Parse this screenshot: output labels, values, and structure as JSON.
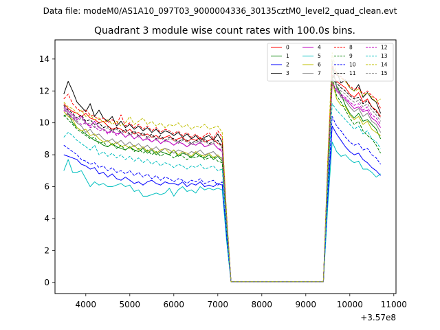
{
  "suptitle": "Data file: modeM0/AS1A10_097T03_9000004336_30135cztM0_level2_quad_clean.evt",
  "chart_data": {
    "type": "line",
    "title": "Quadrant 3 module wise count rates with 100.0s bins.",
    "xlabel": "",
    "ylabel": "",
    "offset_text": "+3.57e8",
    "xlim": [
      3300,
      11050
    ],
    "ylim": [
      -0.7,
      15.2
    ],
    "xticks": [
      4000,
      5000,
      6000,
      7000,
      8000,
      9000,
      10000,
      11000
    ],
    "xtick_labels": [
      "4000",
      "5000",
      "6000",
      "7000",
      "8000",
      "9000",
      "10000",
      "11000"
    ],
    "yticks": [
      0,
      2,
      4,
      6,
      8,
      10,
      12,
      14
    ],
    "ytick_labels": [
      "0",
      "2",
      "4",
      "6",
      "8",
      "10",
      "12",
      "14"
    ],
    "bin_seconds": 100,
    "x": [
      3500,
      3600,
      3700,
      3800,
      3900,
      4000,
      4100,
      4200,
      4300,
      4400,
      4500,
      4600,
      4700,
      4800,
      4900,
      5000,
      5100,
      5200,
      5300,
      5400,
      5500,
      5600,
      5700,
      5800,
      5900,
      6000,
      6100,
      6200,
      6300,
      6400,
      6500,
      6600,
      6700,
      6800,
      6900,
      7000,
      7100,
      7200,
      7300,
      9400,
      9500,
      9600,
      9700,
      9800,
      9900,
      10000,
      10100,
      10200,
      10300,
      10400,
      10500,
      10600,
      10700
    ],
    "legend": {
      "location": "upper right",
      "columns": 4
    },
    "series": [
      {
        "name": "0",
        "color": "#ff0000",
        "dash": "solid",
        "values": [
          11.2,
          10.9,
          10.7,
          10.6,
          10.4,
          10.6,
          10.3,
          10.2,
          10.0,
          10.1,
          9.8,
          9.6,
          9.7,
          9.6,
          9.4,
          9.6,
          9.3,
          9.4,
          9.2,
          9.3,
          9.1,
          9.2,
          9.0,
          9.1,
          9.2,
          8.9,
          9.0,
          9.1,
          8.8,
          9.0,
          8.9,
          9.1,
          8.8,
          8.9,
          9.0,
          8.7,
          8.6,
          4.0,
          0.05,
          0.05,
          7.0,
          13.0,
          12.6,
          12.4,
          12.2,
          11.8,
          11.6,
          11.9,
          11.3,
          11.5,
          11.0,
          10.8,
          10.4
        ]
      },
      {
        "name": "1",
        "color": "#008000",
        "dash": "solid",
        "values": [
          10.4,
          10.6,
          10.0,
          9.7,
          9.5,
          9.3,
          9.1,
          8.9,
          8.8,
          8.6,
          8.5,
          8.7,
          8.5,
          8.4,
          8.3,
          8.5,
          8.3,
          8.2,
          8.4,
          8.1,
          8.3,
          8.0,
          8.2,
          8.1,
          8.0,
          8.3,
          7.9,
          8.1,
          8.0,
          7.8,
          8.1,
          7.9,
          7.8,
          8.0,
          7.7,
          7.9,
          7.6,
          3.5,
          0.05,
          0.05,
          6.3,
          13.5,
          12.3,
          11.8,
          11.1,
          10.6,
          10.3,
          10.6,
          10.1,
          10.2,
          9.9,
          9.6,
          9.0
        ]
      },
      {
        "name": "2",
        "color": "#0000ff",
        "dash": "solid",
        "values": [
          8.0,
          7.9,
          7.8,
          7.7,
          7.4,
          7.3,
          7.1,
          7.2,
          6.8,
          6.9,
          6.6,
          6.8,
          6.5,
          6.4,
          6.6,
          6.4,
          6.2,
          6.3,
          6.1,
          6.3,
          6.4,
          6.2,
          6.1,
          6.3,
          6.2,
          6.2,
          6.1,
          6.3,
          6.0,
          6.2,
          6.1,
          6.3,
          6.0,
          6.1,
          6.0,
          6.2,
          6.1,
          2.8,
          0.05,
          0.05,
          5.2,
          9.8,
          9.3,
          8.9,
          8.5,
          8.2,
          8.0,
          8.1,
          7.7,
          7.5,
          7.2,
          7.0,
          6.7
        ]
      },
      {
        "name": "3",
        "color": "#000000",
        "dash": "solid",
        "values": [
          11.8,
          12.6,
          12.0,
          11.3,
          11.0,
          10.7,
          11.2,
          10.4,
          10.8,
          10.3,
          10.1,
          10.4,
          9.8,
          10.1,
          9.7,
          9.9,
          9.6,
          9.8,
          9.5,
          9.7,
          9.4,
          9.6,
          9.3,
          9.5,
          9.4,
          9.2,
          9.4,
          9.1,
          9.3,
          9.0,
          9.2,
          8.9,
          9.1,
          9.2,
          8.9,
          9.3,
          8.8,
          4.1,
          0.05,
          0.05,
          7.4,
          12.8,
          13.2,
          12.5,
          12.7,
          12.2,
          12.0,
          12.4,
          11.6,
          11.9,
          11.5,
          11.3,
          10.6
        ]
      },
      {
        "name": "4",
        "color": "#bf00bf",
        "dash": "solid",
        "values": [
          11.0,
          10.7,
          10.5,
          10.2,
          10.4,
          10.0,
          9.8,
          10.1,
          9.7,
          9.6,
          9.4,
          9.5,
          9.3,
          9.4,
          9.1,
          9.3,
          9.0,
          9.2,
          8.9,
          9.0,
          8.8,
          9.0,
          8.7,
          8.9,
          8.8,
          8.6,
          8.8,
          8.7,
          8.5,
          8.7,
          8.6,
          8.8,
          8.5,
          8.6,
          8.7,
          8.4,
          8.2,
          3.9,
          0.05,
          0.05,
          6.9,
          12.4,
          12.0,
          11.7,
          11.5,
          11.2,
          10.9,
          11.0,
          10.7,
          10.8,
          10.3,
          10.1,
          9.7
        ]
      },
      {
        "name": "5",
        "color": "#00bfbf",
        "dash": "solid",
        "values": [
          7.0,
          7.7,
          6.9,
          6.9,
          7.0,
          6.5,
          6.0,
          6.3,
          6.1,
          6.2,
          6.0,
          6.0,
          6.1,
          6.2,
          6.0,
          6.1,
          5.7,
          5.8,
          5.4,
          5.4,
          5.5,
          5.6,
          5.5,
          5.6,
          5.9,
          5.4,
          5.8,
          6.0,
          5.7,
          5.8,
          5.6,
          6.0,
          5.8,
          5.9,
          5.8,
          5.9,
          5.8,
          2.6,
          0.05,
          0.05,
          4.8,
          8.8,
          8.2,
          7.9,
          8.0,
          7.7,
          7.5,
          7.6,
          7.1,
          7.1,
          6.9,
          6.6,
          6.8
        ]
      },
      {
        "name": "6",
        "color": "#bfbf00",
        "dash": "solid",
        "values": [
          10.7,
          10.4,
          10.2,
          9.7,
          9.5,
          9.6,
          9.2,
          9.3,
          9.0,
          8.8,
          8.9,
          8.6,
          8.8,
          8.5,
          8.6,
          8.4,
          8.6,
          8.3,
          8.5,
          8.2,
          8.4,
          8.1,
          8.3,
          8.4,
          8.1,
          8.3,
          8.0,
          8.2,
          8.1,
          7.9,
          8.2,
          8.0,
          7.9,
          8.1,
          7.8,
          8.0,
          7.7,
          3.6,
          0.05,
          0.05,
          6.4,
          12.6,
          11.5,
          11.1,
          11.0,
          10.5,
          10.2,
          10.4,
          9.9,
          10.1,
          9.6,
          9.4,
          9.2
        ]
      },
      {
        "name": "7",
        "color": "#808080",
        "dash": "solid",
        "values": [
          10.9,
          10.6,
          10.3,
          10.0,
          9.8,
          9.4,
          9.6,
          9.2,
          9.3,
          9.0,
          8.8,
          9.0,
          8.7,
          8.9,
          8.6,
          8.8,
          8.5,
          8.7,
          8.4,
          8.6,
          8.3,
          8.5,
          8.2,
          8.4,
          8.3,
          8.1,
          8.3,
          8.2,
          8.0,
          8.2,
          8.1,
          8.3,
          8.0,
          8.1,
          8.2,
          7.9,
          7.8,
          3.7,
          0.05,
          0.05,
          6.7,
          13.9,
          12.2,
          11.6,
          11.4,
          11.0,
          10.7,
          10.9,
          10.4,
          10.6,
          10.1,
          9.9,
          9.4
        ]
      },
      {
        "name": "8",
        "color": "#ff0000",
        "dash": "dashed",
        "values": [
          11.5,
          11.8,
          11.2,
          10.9,
          10.7,
          10.8,
          10.5,
          10.4,
          10.2,
          10.3,
          10.0,
          10.2,
          9.9,
          10.5,
          9.8,
          10.0,
          9.7,
          9.9,
          9.6,
          9.8,
          9.5,
          9.7,
          9.4,
          9.6,
          9.5,
          9.3,
          9.5,
          9.2,
          9.4,
          9.1,
          9.3,
          9.0,
          9.2,
          9.4,
          9.0,
          9.5,
          9.1,
          4.2,
          0.05,
          0.05,
          7.6,
          13.6,
          13.0,
          12.9,
          12.6,
          12.3,
          12.1,
          12.2,
          11.8,
          12.0,
          11.7,
          11.5,
          10.9
        ]
      },
      {
        "name": "9",
        "color": "#008000",
        "dash": "dashed",
        "values": [
          10.5,
          10.2,
          9.9,
          9.6,
          9.4,
          9.2,
          9.0,
          9.1,
          8.7,
          8.8,
          8.5,
          8.7,
          8.4,
          8.6,
          8.3,
          8.5,
          8.2,
          8.4,
          8.1,
          8.3,
          8.0,
          8.2,
          7.9,
          8.1,
          8.0,
          7.8,
          8.0,
          7.9,
          7.7,
          7.9,
          7.8,
          8.0,
          7.7,
          7.8,
          7.9,
          7.6,
          7.5,
          3.4,
          0.05,
          0.05,
          6.2,
          12.9,
          11.7,
          11.3,
          10.8,
          10.3,
          9.9,
          10.1,
          9.5,
          9.2,
          9.0,
          8.6,
          8.1
        ]
      },
      {
        "name": "10",
        "color": "#0000ff",
        "dash": "dashed",
        "values": [
          8.6,
          8.4,
          8.2,
          8.0,
          7.7,
          7.6,
          7.4,
          7.5,
          7.2,
          7.3,
          7.0,
          7.2,
          6.9,
          7.0,
          6.8,
          7.0,
          6.7,
          6.9,
          6.6,
          6.8,
          6.5,
          6.7,
          6.4,
          6.6,
          6.5,
          6.3,
          6.5,
          6.4,
          6.2,
          6.4,
          6.3,
          6.5,
          6.2,
          6.3,
          6.4,
          6.1,
          6.3,
          2.9,
          0.05,
          0.05,
          5.5,
          10.4,
          9.8,
          9.5,
          9.1,
          8.8,
          8.6,
          8.7,
          8.3,
          8.4,
          8.0,
          7.8,
          7.4
        ]
      },
      {
        "name": "11",
        "color": "#000000",
        "dash": "dashed",
        "values": [
          11.1,
          10.8,
          10.6,
          10.3,
          10.5,
          10.1,
          10.2,
          9.9,
          10.0,
          9.7,
          9.8,
          9.5,
          9.7,
          9.4,
          9.6,
          9.3,
          9.5,
          9.2,
          9.4,
          9.1,
          9.3,
          9.0,
          9.2,
          8.9,
          9.1,
          9.0,
          8.8,
          9.0,
          8.9,
          8.7,
          8.9,
          8.8,
          9.0,
          8.7,
          8.8,
          8.9,
          8.5,
          4.0,
          0.05,
          0.05,
          7.2,
          12.7,
          12.5,
          12.2,
          12.0,
          11.7,
          11.5,
          11.6,
          11.2,
          11.4,
          11.0,
          10.7,
          10.3
        ]
      },
      {
        "name": "12",
        "color": "#bf00bf",
        "dash": "dashed",
        "values": [
          10.8,
          10.5,
          10.3,
          10.1,
          9.9,
          10.0,
          9.7,
          9.8,
          9.5,
          9.6,
          9.3,
          9.5,
          9.2,
          9.4,
          9.1,
          9.3,
          9.0,
          9.2,
          8.9,
          9.1,
          8.8,
          9.0,
          8.7,
          8.9,
          8.8,
          8.6,
          8.8,
          8.7,
          8.5,
          8.7,
          8.6,
          8.8,
          8.5,
          8.6,
          8.7,
          8.4,
          8.3,
          3.9,
          0.05,
          0.05,
          7.0,
          12.5,
          12.1,
          11.8,
          11.6,
          11.3,
          11.1,
          11.2,
          10.8,
          11.0,
          10.5,
          10.3,
          9.9
        ]
      },
      {
        "name": "13",
        "color": "#00bfbf",
        "dash": "dashed",
        "values": [
          9.1,
          9.4,
          9.2,
          8.9,
          8.7,
          8.5,
          8.3,
          8.6,
          8.0,
          8.2,
          7.9,
          8.1,
          7.8,
          8.0,
          7.7,
          7.9,
          7.6,
          7.8,
          7.5,
          7.7,
          7.4,
          7.6,
          7.3,
          7.5,
          7.4,
          7.2,
          7.4,
          7.3,
          7.1,
          7.3,
          7.2,
          7.4,
          7.1,
          7.2,
          7.3,
          7.0,
          7.1,
          3.3,
          0.05,
          0.05,
          6.1,
          11.2,
          10.8,
          10.5,
          10.2,
          9.9,
          9.6,
          9.8,
          9.3,
          9.5,
          9.0,
          8.8,
          8.4
        ]
      },
      {
        "name": "14",
        "color": "#bfbf00",
        "dash": "dashed",
        "values": [
          11.3,
          11.0,
          10.9,
          10.6,
          10.8,
          10.4,
          10.5,
          10.2,
          10.3,
          10.0,
          10.2,
          9.9,
          10.1,
          9.8,
          10.0,
          10.4,
          9.9,
          10.1,
          10.3,
          9.9,
          10.1,
          9.8,
          10.0,
          9.7,
          9.9,
          9.8,
          10.0,
          9.7,
          9.9,
          9.6,
          9.8,
          9.7,
          9.9,
          9.6,
          9.7,
          9.8,
          9.4,
          4.3,
          0.05,
          0.05,
          7.8,
          14.4,
          13.1,
          12.8,
          12.6,
          12.2,
          12.0,
          12.1,
          11.7,
          11.9,
          11.6,
          11.3,
          11.5
        ]
      },
      {
        "name": "15",
        "color": "#808080",
        "dash": "dashed",
        "values": [
          10.9,
          10.6,
          10.4,
          10.1,
          10.3,
          9.9,
          10.0,
          9.7,
          9.8,
          9.5,
          9.7,
          9.4,
          9.6,
          9.3,
          9.5,
          9.2,
          9.4,
          9.1,
          9.3,
          9.0,
          9.2,
          8.9,
          9.1,
          8.8,
          9.0,
          8.9,
          8.7,
          8.9,
          8.8,
          8.6,
          8.8,
          8.7,
          8.9,
          8.6,
          8.7,
          8.8,
          8.4,
          3.9,
          0.05,
          0.05,
          7.0,
          12.8,
          12.3,
          12.0,
          11.8,
          11.5,
          11.3,
          11.4,
          11.0,
          11.2,
          10.8,
          10.5,
          10.1
        ]
      }
    ]
  }
}
